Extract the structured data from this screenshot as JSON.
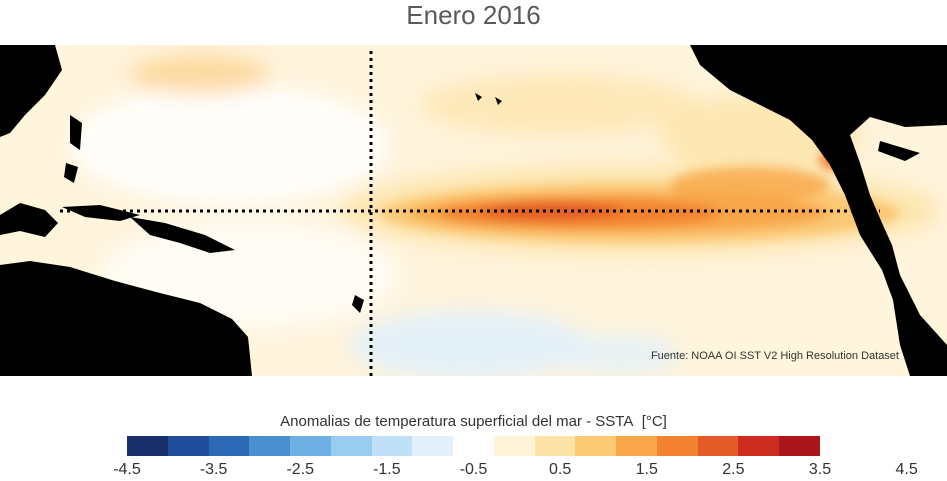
{
  "title": "Enero 2016",
  "source": "Fuente: NOAA OI SST V2 High Resolution Dataset",
  "colorbar": {
    "title": "Anomalias de temperatura superficial del mar - SSTA",
    "unit": "[°C]",
    "colors": [
      "#1b2e6c",
      "#1f4c9b",
      "#2c6ab8",
      "#4a8fd0",
      "#6eb0e4",
      "#98cdf0",
      "#bfe0f6",
      "#e1f0fb",
      "#ffffff",
      "#fff3d8",
      "#fde3a8",
      "#fbc874",
      "#f8a649",
      "#f2822f",
      "#e35b26",
      "#cc2b20",
      "#a9161b"
    ],
    "tick_labels": [
      "-4.5",
      "-3.5",
      "-2.5",
      "-1.5",
      "-0.5",
      "0.5",
      "1.5",
      "2.5",
      "3.5",
      "4.5"
    ]
  }
}
